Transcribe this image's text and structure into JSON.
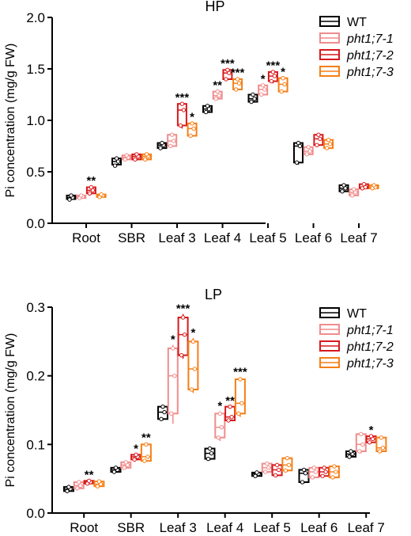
{
  "chart_data": [
    {
      "type": "box",
      "title": "HP",
      "ylabel": "Pi concentration (mg/g FW)",
      "ylim": [
        0,
        2.0
      ],
      "yticks": [
        "0.0",
        "0.5",
        "1.0",
        "1.5",
        "2.0"
      ],
      "categories": [
        "Root",
        "SBR",
        "Leaf 3",
        "Leaf 4",
        "Leaf 5",
        "Leaf 6",
        "Leaf 7"
      ],
      "legend_position": "top-right",
      "series": [
        {
          "name": "WT",
          "color": "#000000",
          "boxes": [
            {
              "min": 0.23,
              "q1": 0.235,
              "median": 0.25,
              "q3": 0.27,
              "max": 0.275,
              "points": [
                0.23,
                0.25,
                0.27
              ],
              "sig": ""
            },
            {
              "min": 0.55,
              "q1": 0.57,
              "median": 0.6,
              "q3": 0.63,
              "max": 0.64,
              "points": [
                0.56,
                0.6,
                0.63
              ],
              "sig": ""
            },
            {
              "min": 0.72,
              "q1": 0.73,
              "median": 0.76,
              "q3": 0.78,
              "max": 0.8,
              "points": [
                0.73,
                0.76,
                0.78
              ],
              "sig": ""
            },
            {
              "min": 1.07,
              "q1": 1.08,
              "median": 1.11,
              "q3": 1.14,
              "max": 1.15,
              "points": [
                1.08,
                1.11,
                1.14
              ],
              "sig": ""
            },
            {
              "min": 1.17,
              "q1": 1.18,
              "median": 1.21,
              "q3": 1.25,
              "max": 1.26,
              "points": [
                1.18,
                1.21,
                1.25
              ],
              "sig": ""
            },
            {
              "min": 0.57,
              "q1": 0.59,
              "median": 0.75,
              "q3": 0.78,
              "max": 0.79,
              "points": [
                0.59,
                0.75,
                0.78
              ],
              "sig": ""
            },
            {
              "min": 0.3,
              "q1": 0.31,
              "median": 0.34,
              "q3": 0.37,
              "max": 0.38,
              "points": [
                0.31,
                0.34,
                0.37
              ],
              "sig": ""
            }
          ]
        },
        {
          "name": "pht1;7-1",
          "color": "#f08c8c",
          "boxes": [
            {
              "min": 0.24,
              "q1": 0.245,
              "median": 0.26,
              "q3": 0.27,
              "max": 0.275,
              "points": [
                0.245,
                0.26,
                0.27
              ],
              "sig": ""
            },
            {
              "min": 0.61,
              "q1": 0.62,
              "median": 0.64,
              "q3": 0.66,
              "max": 0.67,
              "points": [
                0.62,
                0.64,
                0.66
              ],
              "sig": ""
            },
            {
              "min": 0.74,
              "q1": 0.75,
              "median": 0.8,
              "q3": 0.86,
              "max": 0.87,
              "points": [
                0.75,
                0.8,
                0.86
              ],
              "sig": ""
            },
            {
              "min": 1.2,
              "q1": 1.21,
              "median": 1.24,
              "q3": 1.28,
              "max": 1.29,
              "points": [
                1.21,
                1.24,
                1.28
              ],
              "sig": "**"
            },
            {
              "min": 1.24,
              "q1": 1.25,
              "median": 1.3,
              "q3": 1.34,
              "max": 1.35,
              "points": [
                1.25,
                1.3,
                1.34
              ],
              "sig": "*"
            },
            {
              "min": 0.66,
              "q1": 0.67,
              "median": 0.7,
              "q3": 0.74,
              "max": 0.75,
              "points": [
                0.67,
                0.7,
                0.74
              ],
              "sig": ""
            },
            {
              "min": 0.26,
              "q1": 0.27,
              "median": 0.3,
              "q3": 0.33,
              "max": 0.34,
              "points": [
                0.27,
                0.3,
                0.33
              ],
              "sig": ""
            }
          ]
        },
        {
          "name": "pht1;7-2",
          "color": "#d7191c",
          "boxes": [
            {
              "min": 0.28,
              "q1": 0.29,
              "median": 0.32,
              "q3": 0.35,
              "max": 0.36,
              "points": [
                0.29,
                0.32,
                0.35
              ],
              "sig": "**"
            },
            {
              "min": 0.61,
              "q1": 0.62,
              "median": 0.65,
              "q3": 0.67,
              "max": 0.68,
              "points": [
                0.62,
                0.65,
                0.67
              ],
              "sig": ""
            },
            {
              "min": 0.92,
              "q1": 0.95,
              "median": 1.1,
              "q3": 1.16,
              "max": 1.17,
              "points": [
                0.95,
                1.1,
                1.16
              ],
              "sig": "***"
            },
            {
              "min": 1.39,
              "q1": 1.4,
              "median": 1.46,
              "q3": 1.49,
              "max": 1.5,
              "points": [
                1.4,
                1.46,
                1.49
              ],
              "sig": "***"
            },
            {
              "min": 1.36,
              "q1": 1.38,
              "median": 1.43,
              "q3": 1.47,
              "max": 1.48,
              "points": [
                1.38,
                1.43,
                1.47
              ],
              "sig": "***"
            },
            {
              "min": 0.75,
              "q1": 0.76,
              "median": 0.82,
              "q3": 0.86,
              "max": 0.87,
              "points": [
                0.76,
                0.82,
                0.86
              ],
              "sig": ""
            },
            {
              "min": 0.33,
              "q1": 0.34,
              "median": 0.35,
              "q3": 0.38,
              "max": 0.39,
              "points": [
                0.34,
                0.35,
                0.38
              ],
              "sig": ""
            }
          ]
        },
        {
          "name": "pht1;7-3",
          "color": "#f57f17",
          "boxes": [
            {
              "min": 0.25,
              "q1": 0.255,
              "median": 0.27,
              "q3": 0.28,
              "max": 0.29,
              "points": [
                0.255,
                0.27,
                0.28
              ],
              "sig": ""
            },
            {
              "min": 0.61,
              "q1": 0.62,
              "median": 0.65,
              "q3": 0.67,
              "max": 0.68,
              "points": [
                0.62,
                0.65,
                0.67
              ],
              "sig": ""
            },
            {
              "min": 0.84,
              "q1": 0.85,
              "median": 0.92,
              "q3": 0.97,
              "max": 0.98,
              "points": [
                0.85,
                0.92,
                0.97
              ],
              "sig": "*"
            },
            {
              "min": 1.29,
              "q1": 1.3,
              "median": 1.36,
              "q3": 1.4,
              "max": 1.41,
              "points": [
                1.3,
                1.36,
                1.4
              ],
              "sig": "***"
            },
            {
              "min": 1.27,
              "q1": 1.28,
              "median": 1.35,
              "q3": 1.41,
              "max": 1.42,
              "points": [
                1.28,
                1.35,
                1.41
              ],
              "sig": "*"
            },
            {
              "min": 0.72,
              "q1": 0.73,
              "median": 0.77,
              "q3": 0.81,
              "max": 0.82,
              "points": [
                0.73,
                0.77,
                0.81
              ],
              "sig": ""
            },
            {
              "min": 0.33,
              "q1": 0.34,
              "median": 0.35,
              "q3": 0.37,
              "max": 0.38,
              "points": [
                0.34,
                0.35,
                0.37
              ],
              "sig": ""
            }
          ]
        }
      ]
    },
    {
      "type": "box",
      "title": "LP",
      "ylabel": "Pi concentration (mg/g FW)",
      "ylim": [
        0,
        0.3
      ],
      "yticks": [
        "0.0",
        "0.1",
        "0.2",
        "0.3"
      ],
      "categories": [
        "Root",
        "SBR",
        "Leaf 3",
        "Leaf 4",
        "Leaf 5",
        "Leaf 6",
        "Leaf 7"
      ],
      "legend_position": "top-right",
      "series": [
        {
          "name": "WT",
          "color": "#000000",
          "boxes": [
            {
              "min": 0.031,
              "q1": 0.032,
              "median": 0.035,
              "q3": 0.038,
              "max": 0.039,
              "points": [
                0.032,
                0.035,
                0.038
              ],
              "sig": ""
            },
            {
              "min": 0.059,
              "q1": 0.06,
              "median": 0.063,
              "q3": 0.066,
              "max": 0.067,
              "points": [
                0.06,
                0.063,
                0.066
              ],
              "sig": ""
            },
            {
              "min": 0.135,
              "q1": 0.137,
              "median": 0.147,
              "q3": 0.155,
              "max": 0.156,
              "points": [
                0.137,
                0.147,
                0.155
              ],
              "sig": ""
            },
            {
              "min": 0.077,
              "q1": 0.079,
              "median": 0.087,
              "q3": 0.094,
              "max": 0.095,
              "points": [
                0.079,
                0.087,
                0.094
              ],
              "sig": ""
            },
            {
              "min": 0.053,
              "q1": 0.054,
              "median": 0.057,
              "q3": 0.059,
              "max": 0.06,
              "points": [
                0.054,
                0.057,
                0.059
              ],
              "sig": ""
            },
            {
              "min": 0.043,
              "q1": 0.045,
              "median": 0.058,
              "q3": 0.063,
              "max": 0.064,
              "points": [
                0.045,
                0.058,
                0.063
              ],
              "sig": ""
            },
            {
              "min": 0.081,
              "q1": 0.082,
              "median": 0.086,
              "q3": 0.09,
              "max": 0.091,
              "points": [
                0.082,
                0.086,
                0.09
              ],
              "sig": ""
            }
          ]
        },
        {
          "name": "pht1;7-1",
          "color": "#f08c8c",
          "boxes": [
            {
              "min": 0.035,
              "q1": 0.036,
              "median": 0.04,
              "q3": 0.045,
              "max": 0.046,
              "points": [
                0.036,
                0.04,
                0.045
              ],
              "sig": ""
            },
            {
              "min": 0.065,
              "q1": 0.066,
              "median": 0.07,
              "q3": 0.074,
              "max": 0.075,
              "points": [
                0.066,
                0.07,
                0.074
              ],
              "sig": ""
            },
            {
              "min": 0.13,
              "q1": 0.145,
              "median": 0.2,
              "q3": 0.24,
              "max": 0.245,
              "points": [
                0.145,
                0.2,
                0.24
              ],
              "sig": "*"
            },
            {
              "min": 0.105,
              "q1": 0.11,
              "median": 0.125,
              "q3": 0.145,
              "max": 0.148,
              "points": [
                0.11,
                0.125,
                0.145
              ],
              "sig": "*"
            },
            {
              "min": 0.058,
              "q1": 0.06,
              "median": 0.066,
              "q3": 0.072,
              "max": 0.073,
              "points": [
                0.06,
                0.066,
                0.072
              ],
              "sig": ""
            },
            {
              "min": 0.05,
              "q1": 0.052,
              "median": 0.06,
              "q3": 0.066,
              "max": 0.067,
              "points": [
                0.052,
                0.06,
                0.066
              ],
              "sig": ""
            },
            {
              "min": 0.087,
              "q1": 0.09,
              "median": 0.1,
              "q3": 0.115,
              "max": 0.117,
              "points": [
                0.09,
                0.1,
                0.115
              ],
              "sig": ""
            }
          ]
        },
        {
          "name": "pht1;7-2",
          "color": "#d7191c",
          "boxes": [
            {
              "min": 0.042,
              "q1": 0.043,
              "median": 0.045,
              "q3": 0.047,
              "max": 0.048,
              "points": [
                0.043,
                0.045,
                0.047
              ],
              "sig": "**"
            },
            {
              "min": 0.077,
              "q1": 0.078,
              "median": 0.082,
              "q3": 0.085,
              "max": 0.086,
              "points": [
                0.078,
                0.082,
                0.085
              ],
              "sig": "*"
            },
            {
              "min": 0.225,
              "q1": 0.23,
              "median": 0.26,
              "q3": 0.285,
              "max": 0.29,
              "points": [
                0.23,
                0.26,
                0.285
              ],
              "sig": "***"
            },
            {
              "min": 0.134,
              "q1": 0.135,
              "median": 0.14,
              "q3": 0.155,
              "max": 0.156,
              "points": [
                0.135,
                0.14,
                0.155
              ],
              "sig": "**"
            },
            {
              "min": 0.053,
              "q1": 0.055,
              "median": 0.063,
              "q3": 0.07,
              "max": 0.072,
              "points": [
                0.055,
                0.063,
                0.07
              ],
              "sig": ""
            },
            {
              "min": 0.053,
              "q1": 0.054,
              "median": 0.06,
              "q3": 0.066,
              "max": 0.067,
              "points": [
                0.054,
                0.06,
                0.066
              ],
              "sig": ""
            },
            {
              "min": 0.102,
              "q1": 0.103,
              "median": 0.108,
              "q3": 0.112,
              "max": 0.113,
              "points": [
                0.103,
                0.108,
                0.112
              ],
              "sig": "*"
            }
          ]
        },
        {
          "name": "pht1;7-3",
          "color": "#f57f17",
          "boxes": [
            {
              "min": 0.038,
              "q1": 0.039,
              "median": 0.042,
              "q3": 0.046,
              "max": 0.047,
              "points": [
                0.039,
                0.042,
                0.046
              ],
              "sig": ""
            },
            {
              "min": 0.075,
              "q1": 0.076,
              "median": 0.082,
              "q3": 0.1,
              "max": 0.102,
              "points": [
                0.076,
                0.082,
                0.1
              ],
              "sig": "**"
            },
            {
              "min": 0.175,
              "q1": 0.18,
              "median": 0.21,
              "q3": 0.25,
              "max": 0.255,
              "points": [
                0.18,
                0.21,
                0.25
              ],
              "sig": "*"
            },
            {
              "min": 0.14,
              "q1": 0.145,
              "median": 0.16,
              "q3": 0.195,
              "max": 0.198,
              "points": [
                0.145,
                0.16,
                0.195
              ],
              "sig": "***"
            },
            {
              "min": 0.06,
              "q1": 0.062,
              "median": 0.07,
              "q3": 0.08,
              "max": 0.082,
              "points": [
                0.062,
                0.07,
                0.08
              ],
              "sig": ""
            },
            {
              "min": 0.05,
              "q1": 0.052,
              "median": 0.06,
              "q3": 0.068,
              "max": 0.07,
              "points": [
                0.052,
                0.06,
                0.068
              ],
              "sig": ""
            },
            {
              "min": 0.088,
              "q1": 0.09,
              "median": 0.095,
              "q3": 0.11,
              "max": 0.112,
              "points": [
                0.09,
                0.095,
                0.11
              ],
              "sig": ""
            }
          ]
        }
      ]
    }
  ]
}
